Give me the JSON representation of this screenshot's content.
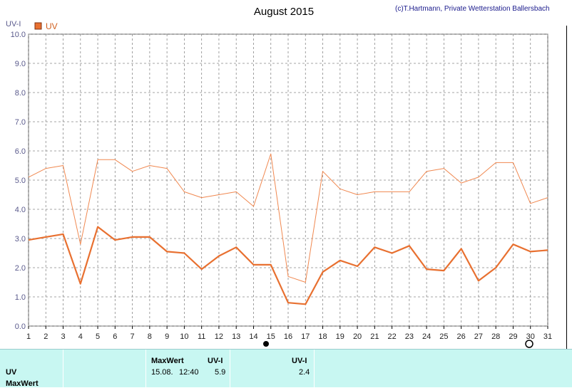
{
  "chart_data": {
    "type": "line",
    "title": "August 2015",
    "credit": "(c)T.Hartmann, Private Wetterstation Ballersbach",
    "ylabel": "UV-I",
    "ylim": [
      0,
      10
    ],
    "yticks": [
      "0.0",
      "1.0",
      "2.0",
      "3.0",
      "4.0",
      "5.0",
      "6.0",
      "7.0",
      "8.0",
      "9.0",
      "10.0"
    ],
    "categories": [
      "1",
      "2",
      "3",
      "4",
      "5",
      "6",
      "7",
      "8",
      "9",
      "10",
      "11",
      "12",
      "13",
      "14",
      "15",
      "16",
      "17",
      "18",
      "19",
      "20",
      "21",
      "22",
      "23",
      "24",
      "25",
      "26",
      "27",
      "28",
      "29",
      "30",
      "31"
    ],
    "legend": "UV",
    "series": [
      {
        "name": "UV",
        "values": [
          2.95,
          3.05,
          3.15,
          1.45,
          3.4,
          2.95,
          3.05,
          3.05,
          2.55,
          2.5,
          1.95,
          2.4,
          2.7,
          2.1,
          2.1,
          0.8,
          0.75,
          1.85,
          2.25,
          2.05,
          2.7,
          2.5,
          2.75,
          1.95,
          1.9,
          2.65,
          1.55,
          2.0,
          2.8,
          2.55,
          2.6
        ]
      },
      {
        "values": [
          5.1,
          5.4,
          5.5,
          2.8,
          5.7,
          5.7,
          5.3,
          5.5,
          5.4,
          4.6,
          4.4,
          4.5,
          4.6,
          4.1,
          5.9,
          1.7,
          1.5,
          5.3,
          4.7,
          4.5,
          4.6,
          4.6,
          4.6,
          5.3,
          5.4,
          4.9,
          5.1,
          5.6,
          5.6,
          4.2,
          4.4
        ]
      }
    ],
    "colors": {
      "main": "#e87030",
      "max": "#f08850",
      "grid": "#888888",
      "legend_box": "#e87030"
    },
    "grid": true
  },
  "info": {
    "row_label_1": "UV",
    "row_label_2": "MaxWert",
    "h_maxwert": "MaxWert",
    "h_uvi_1": "UV-I",
    "date": "15.08.",
    "time": "12:40",
    "max_val": "5.9",
    "h_uvi_2": "UV-I",
    "cur_val": "2.4"
  }
}
